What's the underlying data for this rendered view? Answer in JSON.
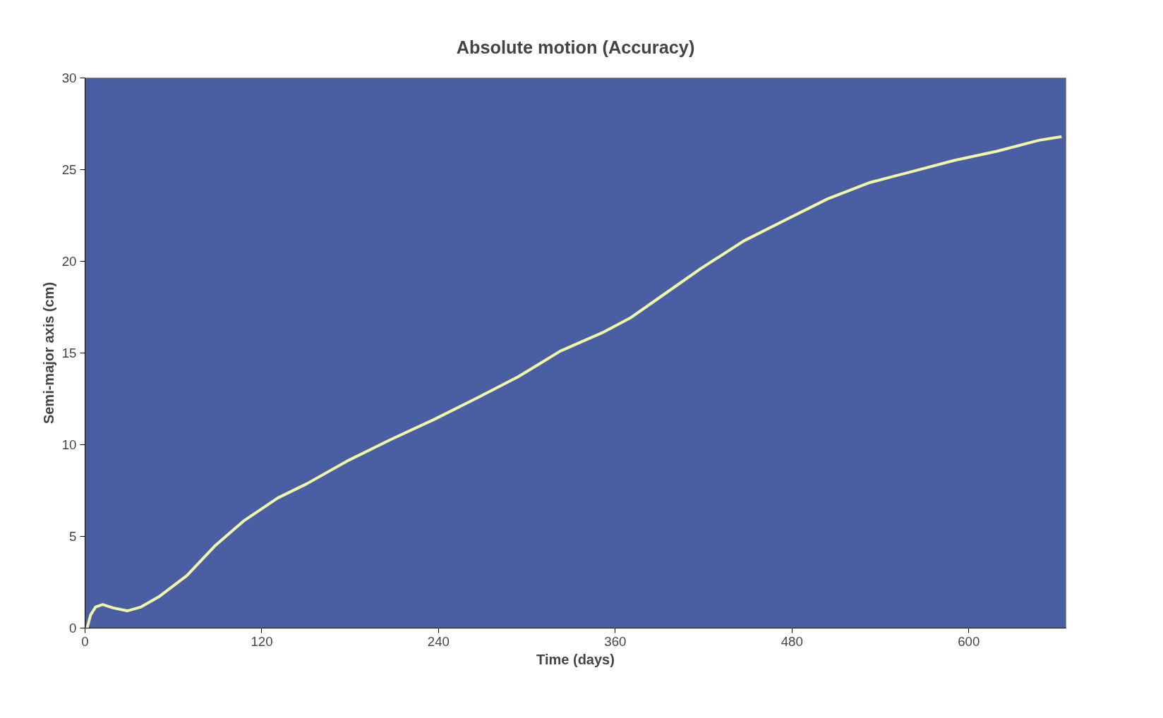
{
  "chart_data": {
    "type": "line",
    "title": "Absolute motion (Accuracy)",
    "xlabel": "Time (days)",
    "ylabel": "Semi-major axis (cm)",
    "xlim": [
      0,
      666
    ],
    "ylim": [
      0,
      30
    ],
    "xticks": [
      0,
      120,
      240,
      360,
      480,
      600
    ],
    "yticks": [
      0,
      5,
      10,
      15,
      20,
      25,
      30
    ],
    "grid": false,
    "marker": "none",
    "line_style": "solid",
    "series": [
      {
        "color": "#f2f7a8",
        "x": [
          1.4,
          3.8,
          7.2,
          12,
          19,
          28.7,
          38,
          50,
          69,
          88,
          107.5,
          131,
          150.6,
          179,
          208,
          236.6,
          265,
          294,
          322.6,
          351,
          370,
          389.6,
          418,
          447,
          475.6,
          504,
          533,
          561.7,
          590,
          619,
          647.7,
          663
        ],
        "values": [
          0,
          0.72,
          1.15,
          1.28,
          1.1,
          0.94,
          1.15,
          1.7,
          2.85,
          4.47,
          5.83,
          7.1,
          7.87,
          9.15,
          10.3,
          11.36,
          12.5,
          13.7,
          15.1,
          16.1,
          16.9,
          18.0,
          19.6,
          21.1,
          22.26,
          23.4,
          24.3,
          24.9,
          25.5,
          26.0,
          26.6,
          26.8
        ]
      }
    ]
  }
}
